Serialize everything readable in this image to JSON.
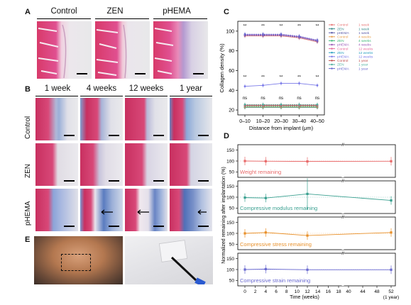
{
  "panelA": {
    "letter": "A",
    "columns": [
      "Control",
      "ZEN",
      "pHEMA"
    ]
  },
  "panelB": {
    "letter": "B",
    "columns": [
      "1 week",
      "4 weeks",
      "12 weeks",
      "1 year"
    ],
    "rows": [
      "Control",
      "ZEN",
      "pHEMA"
    ]
  },
  "panelE": {
    "letter": "E"
  },
  "panelC": {
    "letter": "C",
    "chart_data": {
      "type": "line",
      "ylabel": "Collagen density (%)",
      "xlabel": "Distance from implant (μm)",
      "categories": [
        "0–10",
        "10–20",
        "20–30",
        "30–40",
        "40–50"
      ],
      "yticks": [
        20,
        40,
        60,
        80,
        100
      ],
      "ylim": [
        15,
        110
      ],
      "legend": [
        {
          "name": "Control",
          "time": "1 week",
          "color": "#e87a7a"
        },
        {
          "name": "ZEN",
          "time": "1 week",
          "color": "#3c8c8c"
        },
        {
          "name": "pHEMA",
          "time": "1 week",
          "color": "#5a5aa8"
        },
        {
          "name": "Control",
          "time": "4 weeks",
          "color": "#e8a050"
        },
        {
          "name": "ZEN",
          "time": "4 weeks",
          "color": "#3cb878"
        },
        {
          "name": "pHEMA",
          "time": "4 weeks",
          "color": "#9a5ab8"
        },
        {
          "name": "Control",
          "time": "12 weeks",
          "color": "#e86a9a"
        },
        {
          "name": "ZEN",
          "time": "12 weeks",
          "color": "#2aa0c0"
        },
        {
          "name": "pHEMA",
          "time": "12 weeks",
          "color": "#7a7ae8"
        },
        {
          "name": "Control",
          "time": "1 year",
          "color": "#c05050"
        },
        {
          "name": "ZEN",
          "time": "1 year",
          "color": "#50b0a0"
        },
        {
          "name": "pHEMA",
          "time": "1 year",
          "color": "#6a6ad0"
        }
      ],
      "series_groups": [
        {
          "label": "high",
          "values": [
            96,
            96,
            96,
            94,
            90
          ],
          "colors": [
            "#e87a7a",
            "#5a5aa8",
            "#9a5ab8",
            "#6a6ad0"
          ]
        },
        {
          "label": "mid",
          "values": [
            44,
            45,
            47,
            47,
            45
          ],
          "colors": [
            "#7a7ae8"
          ]
        },
        {
          "label": "low",
          "values": [
            24,
            24,
            24,
            24,
            24
          ],
          "colors": [
            "#3c8c8c",
            "#e8a050",
            "#3cb878",
            "#e86a9a",
            "#c05050",
            "#50b0a0"
          ]
        }
      ],
      "annotations_high": [
        "**",
        "**",
        "**",
        "**",
        "**"
      ],
      "annotations_mid": [
        "**",
        "**",
        "**",
        "**",
        "**"
      ],
      "annotations_low": [
        "ns",
        "ns",
        "ns",
        "ns",
        "ns"
      ]
    }
  },
  "panelD": {
    "letter": "D",
    "ylabel": "Normalized remaining after implantation (%)",
    "xlabel": "Time (weeks)",
    "xticks": [
      "0",
      "2",
      "4",
      "6",
      "8",
      "10",
      "12",
      "14",
      "16",
      "18",
      "40",
      "44",
      "48",
      "52"
    ],
    "year_label": "(1 year)",
    "chart_data": [
      {
        "type": "line",
        "title": "Weight remaining",
        "color": "#e86a6a",
        "x": [
          0,
          4,
          12,
          52
        ],
        "values": [
          100,
          99,
          98,
          99
        ]
      },
      {
        "type": "line",
        "title": "Compressive modulus remaining",
        "color": "#3aa090",
        "x": [
          0,
          4,
          12,
          52
        ],
        "values": [
          98,
          96,
          115,
          85
        ]
      },
      {
        "type": "line",
        "title": "Compressive stress remaining",
        "color": "#e8902a",
        "x": [
          0,
          4,
          12,
          52
        ],
        "values": [
          100,
          104,
          90,
          104
        ]
      },
      {
        "type": "line",
        "title": "Compressive strain remaining",
        "color": "#6a6ad0",
        "x": [
          0,
          4,
          12,
          52
        ],
        "values": [
          100,
          102,
          99,
          99
        ]
      }
    ]
  }
}
